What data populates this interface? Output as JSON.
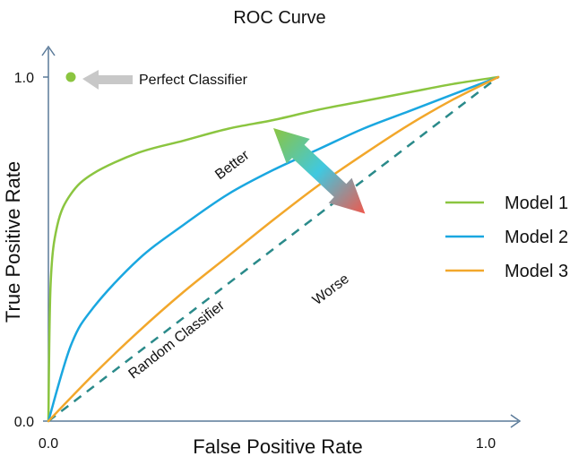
{
  "chart_data": {
    "type": "line",
    "title": "ROC Curve",
    "xlabel": "False Positive Rate",
    "ylabel": "True Positive Rate",
    "xlim": [
      0,
      1
    ],
    "ylim": [
      0,
      1
    ],
    "x_ticks": [
      "0.0",
      "1.0"
    ],
    "y_ticks": [
      "0.0",
      "1.0"
    ],
    "grid": false,
    "legend_position": "right",
    "series": [
      {
        "name": "Model 1",
        "color": "#8bc540",
        "x": [
          0,
          0.005,
          0.02,
          0.05,
          0.1,
          0.2,
          0.3,
          0.4,
          0.5,
          0.6,
          0.7,
          0.8,
          0.9,
          1.0
        ],
        "y": [
          0,
          0.4,
          0.57,
          0.66,
          0.72,
          0.78,
          0.815,
          0.85,
          0.875,
          0.905,
          0.93,
          0.955,
          0.98,
          1.0
        ]
      },
      {
        "name": "Model 2",
        "color": "#1aa7e0",
        "x": [
          0,
          0.05,
          0.1,
          0.2,
          0.3,
          0.4,
          0.5,
          0.6,
          0.7,
          0.8,
          0.9,
          1.0
        ],
        "y": [
          0,
          0.22,
          0.33,
          0.47,
          0.57,
          0.66,
          0.73,
          0.79,
          0.85,
          0.9,
          0.95,
          1.0
        ]
      },
      {
        "name": "Model 3",
        "color": "#f2a72b",
        "x": [
          0,
          0.1,
          0.2,
          0.3,
          0.4,
          0.5,
          0.6,
          0.7,
          0.8,
          0.9,
          1.0
        ],
        "y": [
          0,
          0.135,
          0.26,
          0.375,
          0.48,
          0.585,
          0.685,
          0.775,
          0.86,
          0.935,
          1.0
        ]
      }
    ],
    "reference_line": {
      "label": "Random Classifier",
      "color": "#2a8a8a",
      "x": [
        0,
        1
      ],
      "y": [
        0,
        1
      ]
    },
    "perfect_point": {
      "label": "Perfect Classifier",
      "color": "#8bc540",
      "x": 0.05,
      "y": 1.0
    },
    "annotations": {
      "better": "Better",
      "worse": "Worse"
    },
    "colors": {
      "arrow_better": "#8bc540",
      "arrow_mid": "#40c8e0",
      "arrow_worse": "#f0584c",
      "perfect_arrow": "#c8c8c8",
      "axis": "#5a7a99"
    }
  }
}
